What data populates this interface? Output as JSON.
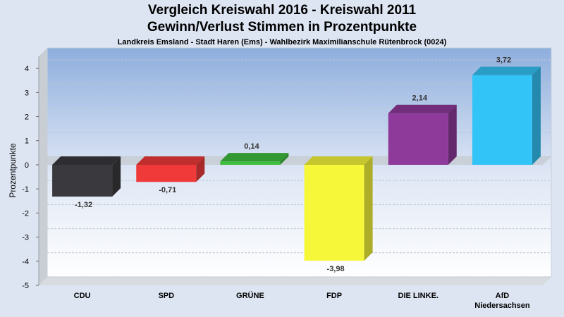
{
  "chart_data": {
    "type": "bar",
    "title": "Vergleich Kreiswahl 2016 - Kreiswahl 2011",
    "subtitle_line": "Gewinn/Verlust Stimmen in Prozentpunkte",
    "subtitle": "Landkreis Emsland - Stadt Haren (Ems) - Wahlbezirk Maximilianschule Rütenbrock (0024)",
    "xlabel": "",
    "ylabel": "Prozentpunkte",
    "ylim": [
      -5,
      4.5
    ],
    "yticks": [
      4,
      3,
      2,
      1,
      0,
      -1,
      -2,
      -3,
      -4,
      -5
    ],
    "grid": true,
    "categories": [
      "CDU",
      "SPD",
      "GRÜNE",
      "FDP",
      "DIE LINKE.",
      "AfD Niedersachsen"
    ],
    "values": [
      -1.32,
      -0.71,
      0.14,
      -3.98,
      2.14,
      3.72
    ],
    "value_labels": [
      "-1,32",
      "-0,71",
      "0,14",
      "-3,98",
      "2,14",
      "3,72"
    ],
    "colors": [
      "#3a3a3e",
      "#f03a3a",
      "#3fbf3f",
      "#f7f73a",
      "#8e3a9a",
      "#33c4f7"
    ]
  }
}
